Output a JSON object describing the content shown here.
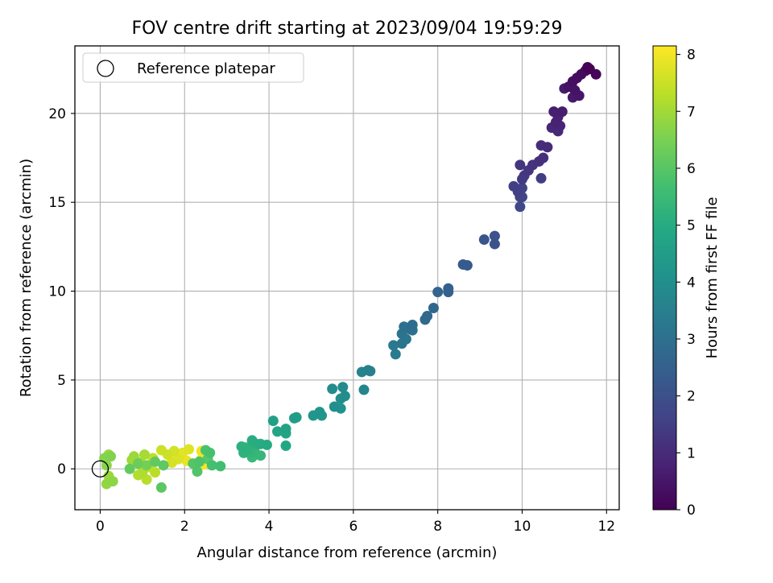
{
  "chart_data": {
    "type": "scatter",
    "title": "FOV centre drift starting at 2023/09/04 19:59:29",
    "xlabel": "Angular distance from reference (arcmin)",
    "ylabel": "Rotation from reference (arcmin)",
    "xlim": [
      -0.6,
      12.3
    ],
    "ylim": [
      -2.3,
      23.8
    ],
    "xticks": [
      0,
      2,
      4,
      6,
      8,
      10,
      12
    ],
    "yticks": [
      0,
      5,
      10,
      15,
      20
    ],
    "grid": true,
    "legend": {
      "placement": "top-left",
      "entries": [
        "Reference platepar"
      ]
    },
    "colorbar": {
      "label": "Hours from first FF file",
      "range": [
        0,
        8.15
      ],
      "ticks": [
        0,
        1,
        2,
        3,
        4,
        5,
        6,
        7,
        8
      ],
      "colormap": "viridis"
    },
    "reference_point": {
      "x": 0,
      "y": 0,
      "marker": "hollow circle",
      "color": "#000000"
    },
    "series": [
      {
        "color_by": "hours",
        "points": [
          {
            "x": 11.55,
            "y": 22.6,
            "h": 0.05
          },
          {
            "x": 11.6,
            "y": 22.5,
            "h": 0.1
          },
          {
            "x": 11.75,
            "y": 22.2,
            "h": 0.15
          },
          {
            "x": 11.5,
            "y": 22.4,
            "h": 0.2
          },
          {
            "x": 11.4,
            "y": 22.2,
            "h": 0.25
          },
          {
            "x": 11.3,
            "y": 22.0,
            "h": 0.3
          },
          {
            "x": 11.2,
            "y": 21.8,
            "h": 0.35
          },
          {
            "x": 11.1,
            "y": 21.5,
            "h": 0.4
          },
          {
            "x": 11.25,
            "y": 21.3,
            "h": 0.45
          },
          {
            "x": 11.35,
            "y": 21.0,
            "h": 0.5
          },
          {
            "x": 11.2,
            "y": 20.9,
            "h": 0.55
          },
          {
            "x": 11.0,
            "y": 21.4,
            "h": 0.6
          },
          {
            "x": 10.95,
            "y": 20.1,
            "h": 0.65
          },
          {
            "x": 10.75,
            "y": 20.1,
            "h": 0.7
          },
          {
            "x": 10.85,
            "y": 19.8,
            "h": 0.75
          },
          {
            "x": 10.8,
            "y": 19.5,
            "h": 0.8
          },
          {
            "x": 10.9,
            "y": 19.3,
            "h": 0.85
          },
          {
            "x": 10.7,
            "y": 19.2,
            "h": 0.9
          },
          {
            "x": 10.85,
            "y": 19.0,
            "h": 0.95
          },
          {
            "x": 10.6,
            "y": 18.1,
            "h": 1.0
          },
          {
            "x": 10.45,
            "y": 18.2,
            "h": 1.05
          },
          {
            "x": 10.5,
            "y": 17.5,
            "h": 1.1
          },
          {
            "x": 10.4,
            "y": 17.3,
            "h": 1.15
          },
          {
            "x": 10.25,
            "y": 17.1,
            "h": 1.2
          },
          {
            "x": 9.95,
            "y": 17.1,
            "h": 1.25
          },
          {
            "x": 10.15,
            "y": 16.8,
            "h": 1.3
          },
          {
            "x": 10.05,
            "y": 16.5,
            "h": 1.35
          },
          {
            "x": 10.0,
            "y": 16.3,
            "h": 1.4
          },
          {
            "x": 10.45,
            "y": 16.35,
            "h": 1.45
          },
          {
            "x": 9.8,
            "y": 15.9,
            "h": 1.5
          },
          {
            "x": 9.9,
            "y": 15.6,
            "h": 1.55
          },
          {
            "x": 10.0,
            "y": 15.8,
            "h": 1.6
          },
          {
            "x": 9.95,
            "y": 15.3,
            "h": 1.65
          },
          {
            "x": 10.0,
            "y": 15.3,
            "h": 1.7
          },
          {
            "x": 9.95,
            "y": 14.75,
            "h": 1.75
          },
          {
            "x": 9.35,
            "y": 13.1,
            "h": 2.05
          },
          {
            "x": 9.35,
            "y": 12.65,
            "h": 2.1
          },
          {
            "x": 9.1,
            "y": 12.9,
            "h": 2.15
          },
          {
            "x": 8.7,
            "y": 11.45,
            "h": 2.3
          },
          {
            "x": 8.6,
            "y": 11.5,
            "h": 2.35
          },
          {
            "x": 8.25,
            "y": 10.15,
            "h": 2.5
          },
          {
            "x": 8.25,
            "y": 9.95,
            "h": 2.55
          },
          {
            "x": 8.0,
            "y": 9.95,
            "h": 2.6
          },
          {
            "x": 7.9,
            "y": 9.05,
            "h": 2.7
          },
          {
            "x": 7.75,
            "y": 8.6,
            "h": 2.75
          },
          {
            "x": 7.7,
            "y": 8.4,
            "h": 2.8
          },
          {
            "x": 7.4,
            "y": 8.1,
            "h": 2.9
          },
          {
            "x": 7.35,
            "y": 7.85,
            "h": 2.95
          },
          {
            "x": 7.2,
            "y": 8.0,
            "h": 3.0
          },
          {
            "x": 7.4,
            "y": 7.8,
            "h": 3.05
          },
          {
            "x": 7.15,
            "y": 7.6,
            "h": 3.1
          },
          {
            "x": 7.25,
            "y": 7.3,
            "h": 3.15
          },
          {
            "x": 7.15,
            "y": 7.05,
            "h": 3.2
          },
          {
            "x": 6.95,
            "y": 6.95,
            "h": 3.3
          },
          {
            "x": 7.0,
            "y": 6.45,
            "h": 3.35
          },
          {
            "x": 6.4,
            "y": 5.5,
            "h": 3.55
          },
          {
            "x": 6.35,
            "y": 5.55,
            "h": 3.6
          },
          {
            "x": 6.2,
            "y": 5.45,
            "h": 3.65
          },
          {
            "x": 6.25,
            "y": 4.45,
            "h": 3.7
          },
          {
            "x": 5.75,
            "y": 4.6,
            "h": 3.85
          },
          {
            "x": 5.5,
            "y": 4.5,
            "h": 3.9
          },
          {
            "x": 5.8,
            "y": 4.1,
            "h": 3.95
          },
          {
            "x": 5.7,
            "y": 3.95,
            "h": 4.0
          },
          {
            "x": 5.55,
            "y": 3.5,
            "h": 4.05
          },
          {
            "x": 5.7,
            "y": 3.4,
            "h": 4.1
          },
          {
            "x": 5.2,
            "y": 3.2,
            "h": 4.2
          },
          {
            "x": 5.05,
            "y": 3.0,
            "h": 4.25
          },
          {
            "x": 5.25,
            "y": 3.0,
            "h": 4.3
          },
          {
            "x": 4.65,
            "y": 2.9,
            "h": 4.45
          },
          {
            "x": 4.6,
            "y": 2.85,
            "h": 4.5
          },
          {
            "x": 4.1,
            "y": 2.7,
            "h": 4.6
          },
          {
            "x": 4.4,
            "y": 2.25,
            "h": 4.7
          },
          {
            "x": 4.2,
            "y": 2.1,
            "h": 4.75
          },
          {
            "x": 4.4,
            "y": 2.0,
            "h": 4.8
          },
          {
            "x": 4.4,
            "y": 1.3,
            "h": 4.85
          },
          {
            "x": 3.95,
            "y": 1.35,
            "h": 4.95
          },
          {
            "x": 3.8,
            "y": 1.4,
            "h": 5.0
          },
          {
            "x": 3.6,
            "y": 1.6,
            "h": 5.05
          },
          {
            "x": 3.7,
            "y": 1.4,
            "h": 5.1
          },
          {
            "x": 3.35,
            "y": 1.25,
            "h": 5.15
          },
          {
            "x": 3.5,
            "y": 1.1,
            "h": 5.2
          },
          {
            "x": 3.4,
            "y": 0.9,
            "h": 5.25
          },
          {
            "x": 3.55,
            "y": 0.9,
            "h": 5.3
          },
          {
            "x": 3.65,
            "y": 1.05,
            "h": 5.35
          },
          {
            "x": 3.8,
            "y": 0.75,
            "h": 5.4
          },
          {
            "x": 3.6,
            "y": 0.65,
            "h": 5.45
          },
          {
            "x": 3.45,
            "y": 1.2,
            "h": 5.5
          },
          {
            "x": 2.85,
            "y": 0.15,
            "h": 5.65
          },
          {
            "x": 2.65,
            "y": 0.2,
            "h": 5.7
          },
          {
            "x": 2.6,
            "y": 0.9,
            "h": 5.75
          },
          {
            "x": 2.5,
            "y": 1.05,
            "h": 5.8
          },
          {
            "x": 2.35,
            "y": 0.4,
            "h": 5.85
          },
          {
            "x": 2.3,
            "y": -0.15,
            "h": 5.9
          },
          {
            "x": 2.2,
            "y": 0.3,
            "h": 5.95
          },
          {
            "x": 2.55,
            "y": 0.55,
            "h": 6.0
          },
          {
            "x": 1.45,
            "y": -1.05,
            "h": 6.05
          },
          {
            "x": 1.5,
            "y": 0.2,
            "h": 6.1
          },
          {
            "x": 1.3,
            "y": 0.4,
            "h": 6.15
          },
          {
            "x": 0.7,
            "y": 0.0,
            "h": 6.2
          },
          {
            "x": 0.9,
            "y": 0.3,
            "h": 6.3
          },
          {
            "x": 1.1,
            "y": 0.2,
            "h": 6.45
          },
          {
            "x": 0.25,
            "y": 0.7,
            "h": 6.6
          },
          {
            "x": 0.1,
            "y": 0.6,
            "h": 6.65
          },
          {
            "x": 0.15,
            "y": 0.2,
            "h": 6.7
          },
          {
            "x": 0.3,
            "y": -0.7,
            "h": 6.75
          },
          {
            "x": 0.15,
            "y": -0.85,
            "h": 6.8
          },
          {
            "x": 0.2,
            "y": 0.8,
            "h": 6.85
          },
          {
            "x": 0.2,
            "y": -0.4,
            "h": 6.9
          },
          {
            "x": 0.8,
            "y": 0.7,
            "h": 6.95
          },
          {
            "x": 0.75,
            "y": 0.5,
            "h": 7.0
          },
          {
            "x": 1.05,
            "y": 0.8,
            "h": 7.05
          },
          {
            "x": 0.95,
            "y": 0.35,
            "h": 7.1
          },
          {
            "x": 1.0,
            "y": -0.2,
            "h": 7.15
          },
          {
            "x": 0.9,
            "y": -0.35,
            "h": 7.2
          },
          {
            "x": 1.1,
            "y": -0.6,
            "h": 7.25
          },
          {
            "x": 1.3,
            "y": -0.2,
            "h": 7.3
          },
          {
            "x": 1.25,
            "y": 0.6,
            "h": 7.35
          },
          {
            "x": 1.15,
            "y": 0.1,
            "h": 7.4
          },
          {
            "x": 1.45,
            "y": 1.05,
            "h": 7.5
          },
          {
            "x": 1.6,
            "y": 0.8,
            "h": 7.55
          },
          {
            "x": 1.75,
            "y": 1.0,
            "h": 7.6
          },
          {
            "x": 1.7,
            "y": 0.35,
            "h": 7.65
          },
          {
            "x": 1.85,
            "y": 0.55,
            "h": 7.7
          },
          {
            "x": 2.1,
            "y": 1.1,
            "h": 7.75
          },
          {
            "x": 1.95,
            "y": 0.9,
            "h": 7.8
          },
          {
            "x": 1.9,
            "y": 0.7,
            "h": 7.85
          },
          {
            "x": 2.05,
            "y": 0.45,
            "h": 7.9
          },
          {
            "x": 2.4,
            "y": 1.0,
            "h": 7.95
          },
          {
            "x": 2.4,
            "y": 0.55,
            "h": 8.0
          },
          {
            "x": 2.45,
            "y": 0.25,
            "h": 8.05
          },
          {
            "x": 1.7,
            "y": 0.5,
            "h": 8.1
          }
        ]
      }
    ]
  }
}
